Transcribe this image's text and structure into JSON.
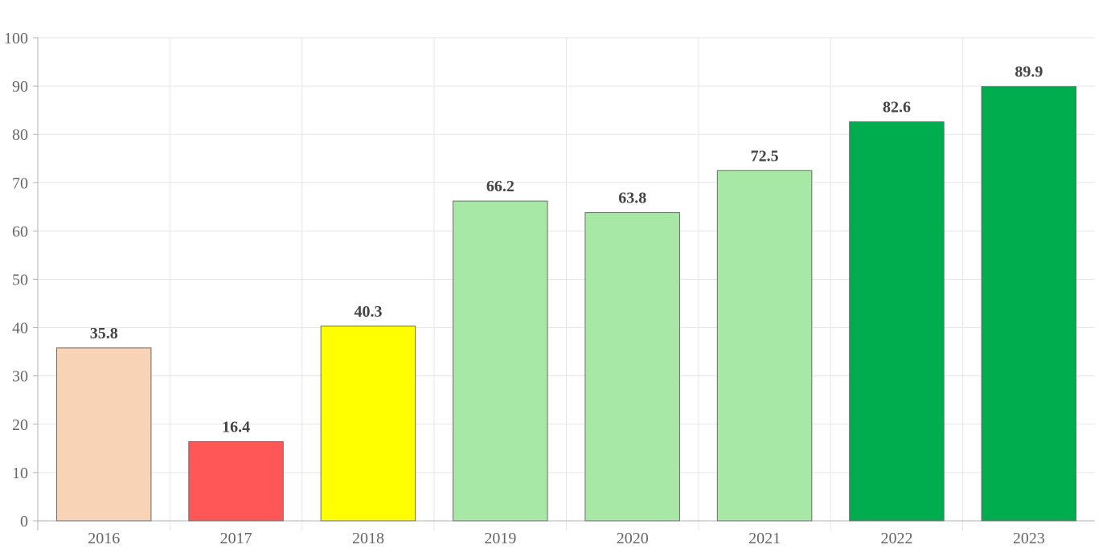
{
  "chart_data": {
    "type": "bar",
    "categories": [
      "2016",
      "2017",
      "2018",
      "2019",
      "2020",
      "2021",
      "2022",
      "2023"
    ],
    "values": [
      35.8,
      16.4,
      40.3,
      66.2,
      63.8,
      72.5,
      82.6,
      89.9
    ],
    "value_labels": [
      "35.8",
      "16.4",
      "40.3",
      "66.2",
      "63.8",
      "72.5",
      "82.6",
      "89.9"
    ],
    "bar_colors": [
      "#f9d3b5",
      "#ff5757",
      "#ffff00",
      "#a8e8a6",
      "#a8e8a6",
      "#a8e8a6",
      "#00ad4e",
      "#00ad4e"
    ],
    "bar_border_color": "#6b6b6b",
    "y_ticks": [
      "0",
      "10",
      "20",
      "30",
      "40",
      "50",
      "60",
      "70",
      "80",
      "90",
      "100"
    ],
    "ylim": [
      0,
      100
    ],
    "grid": true,
    "legend": "none"
  }
}
